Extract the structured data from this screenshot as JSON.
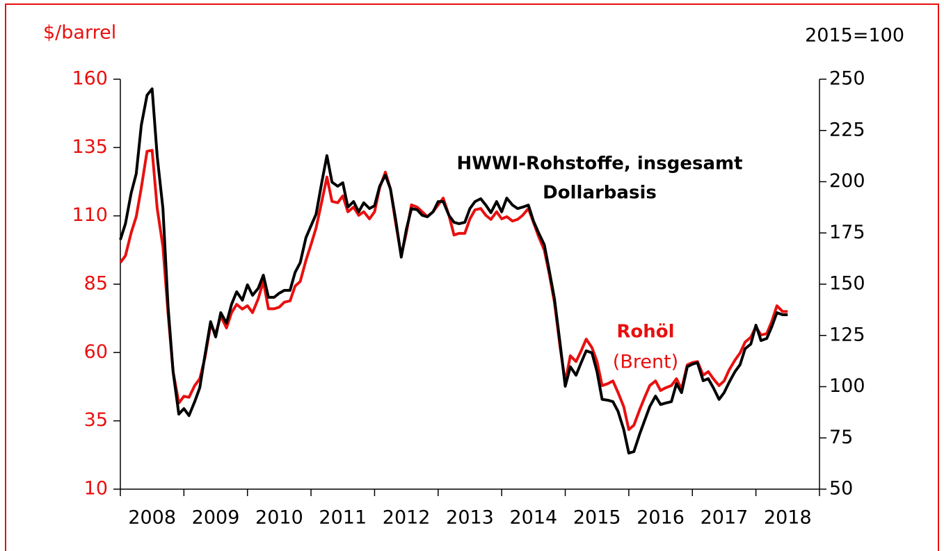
{
  "chart_data": {
    "type": "line",
    "y_label": "$/barrel",
    "y2_label": "2015=100",
    "annotations": [
      "HWWI-Rohstoffe, insgesamt",
      "Dollarbasis",
      "Rohöl",
      "(Brent)"
    ],
    "xlim": [
      2008,
      2019
    ],
    "xticks": [
      2008,
      2009,
      2010,
      2011,
      2012,
      2013,
      2014,
      2015,
      2016,
      2017,
      2018,
      2019
    ],
    "year_labels": [
      "2008",
      "2009",
      "2010",
      "2011",
      "2012",
      "2013",
      "2014",
      "2015",
      "2016",
      "2017",
      "2018"
    ],
    "ylim": [
      10,
      160
    ],
    "yticks": [
      10,
      35,
      60,
      85,
      110,
      135,
      160
    ],
    "y2lim": [
      50,
      250
    ],
    "y2ticks": [
      50,
      75,
      100,
      125,
      150,
      175,
      200,
      225,
      250
    ],
    "y_color": "#e8100f",
    "y2_color": "#000000",
    "x": [
      2008.0,
      2008.08,
      2008.17,
      2008.25,
      2008.33,
      2008.42,
      2008.5,
      2008.58,
      2008.67,
      2008.75,
      2008.83,
      2008.92,
      2009.0,
      2009.08,
      2009.17,
      2009.25,
      2009.33,
      2009.42,
      2009.5,
      2009.58,
      2009.67,
      2009.75,
      2009.83,
      2009.92,
      2010.0,
      2010.08,
      2010.17,
      2010.25,
      2010.33,
      2010.42,
      2010.5,
      2010.58,
      2010.67,
      2010.75,
      2010.83,
      2010.92,
      2011.0,
      2011.08,
      2011.17,
      2011.25,
      2011.33,
      2011.42,
      2011.5,
      2011.58,
      2011.67,
      2011.75,
      2011.83,
      2011.92,
      2012.0,
      2012.08,
      2012.17,
      2012.25,
      2012.33,
      2012.42,
      2012.5,
      2012.58,
      2012.67,
      2012.75,
      2012.83,
      2012.92,
      2013.0,
      2013.08,
      2013.17,
      2013.25,
      2013.33,
      2013.42,
      2013.5,
      2013.58,
      2013.67,
      2013.75,
      2013.83,
      2013.92,
      2014.0,
      2014.08,
      2014.17,
      2014.25,
      2014.33,
      2014.42,
      2014.5,
      2014.58,
      2014.67,
      2014.75,
      2014.83,
      2014.92,
      2015.0,
      2015.08,
      2015.17,
      2015.25,
      2015.33,
      2015.42,
      2015.5,
      2015.58,
      2015.67,
      2015.75,
      2015.83,
      2015.92,
      2016.0,
      2016.08,
      2016.17,
      2016.25,
      2016.33,
      2016.42,
      2016.5,
      2016.58,
      2016.67,
      2016.75,
      2016.83,
      2016.92,
      2017.0,
      2017.08,
      2017.17,
      2017.25,
      2017.33,
      2017.42,
      2017.5,
      2017.58,
      2017.67,
      2017.75,
      2017.83,
      2017.92,
      2018.0,
      2018.08,
      2018.17,
      2018.25,
      2018.33,
      2018.42,
      2018.5
    ],
    "series": [
      {
        "name": "Rohöl (Brent)",
        "color": "#e8100f",
        "axis": "y",
        "values": [
          92.9,
          95.4,
          103.8,
          109.7,
          120.3,
          133.6,
          134,
          112.7,
          98.7,
          74.6,
          53,
          41.5,
          44,
          43.6,
          47.9,
          50.4,
          58,
          70,
          67,
          73.3,
          69,
          74.6,
          77.6,
          75.9,
          77.1,
          74.6,
          79.7,
          86,
          76,
          76,
          76.6,
          78.4,
          78.9,
          84.3,
          86,
          93.7,
          99.5,
          105.6,
          115.3,
          124.2,
          115.3,
          114.8,
          117.3,
          111.5,
          113.2,
          110.2,
          111.5,
          108.9,
          111.5,
          120.3,
          126,
          119.8,
          107.6,
          95.4,
          103.8,
          114,
          113.2,
          111.5,
          109.7,
          111.5,
          114,
          116.5,
          110.2,
          103,
          103.6,
          103.6,
          108.9,
          112.2,
          112.7,
          110.2,
          108.7,
          111.5,
          108.9,
          109.7,
          108.1,
          108.7,
          110.2,
          112.7,
          107.6,
          102.5,
          97.5,
          88.6,
          78.4,
          61.8,
          49.1,
          58.8,
          56.7,
          60.6,
          64.9,
          61.8,
          56.7,
          47.9,
          48.6,
          49.6,
          45.4,
          40.2,
          31.8,
          33.4,
          39,
          43.6,
          47.9,
          49.6,
          46.1,
          47.1,
          47.9,
          50.4,
          46.6,
          55.5,
          56.3,
          56.7,
          51.7,
          53,
          50.4,
          47.9,
          49.6,
          53.7,
          57.2,
          59.8,
          63.8,
          65.6,
          69.5,
          66.4,
          66.9,
          71.4,
          77.1,
          75,
          75
        ]
      },
      {
        "name": "HWWI-Rohstoffe, insgesamt Dollarbasis",
        "color": "#000000",
        "axis": "y2",
        "values": [
          171.7,
          179.5,
          194.4,
          203.9,
          227.6,
          242.2,
          245.3,
          212.4,
          186.9,
          139.5,
          107.3,
          86.6,
          89.3,
          85.9,
          92.7,
          99.5,
          115.1,
          131.7,
          124.3,
          136.1,
          131,
          140.2,
          146.3,
          142.2,
          149.7,
          144.6,
          148,
          154.4,
          143.6,
          143.6,
          145.6,
          147,
          147,
          155.8,
          160.5,
          172.7,
          178.5,
          184.2,
          199.8,
          212.7,
          199.8,
          197.8,
          199.5,
          187.6,
          190.3,
          185.3,
          189.7,
          186.9,
          188.3,
          197.8,
          203.2,
          196.4,
          181.9,
          163.2,
          176.8,
          186.9,
          186.3,
          183.6,
          182.9,
          185.3,
          190.3,
          190.3,
          183.6,
          180.2,
          179.5,
          180.2,
          186.9,
          190.3,
          191.7,
          188.6,
          184.9,
          190.3,
          185.3,
          192,
          188.6,
          186.9,
          187.6,
          188.6,
          180.8,
          175.1,
          169.3,
          156.4,
          142.9,
          120.8,
          100.2,
          109.7,
          105.6,
          111.7,
          117.5,
          116.5,
          107.3,
          93.8,
          93.4,
          92.7,
          88,
          79.1,
          67.6,
          68.3,
          76.8,
          83.6,
          90.3,
          95.4,
          91.3,
          92,
          92.7,
          101.5,
          97.1,
          109.7,
          111,
          111.7,
          102.9,
          103.9,
          99.5,
          93.8,
          97.1,
          102.2,
          107.3,
          110.7,
          118.5,
          120.8,
          130,
          122.5,
          123.5,
          129.3,
          136.1,
          135.1,
          135.1
        ]
      }
    ]
  }
}
